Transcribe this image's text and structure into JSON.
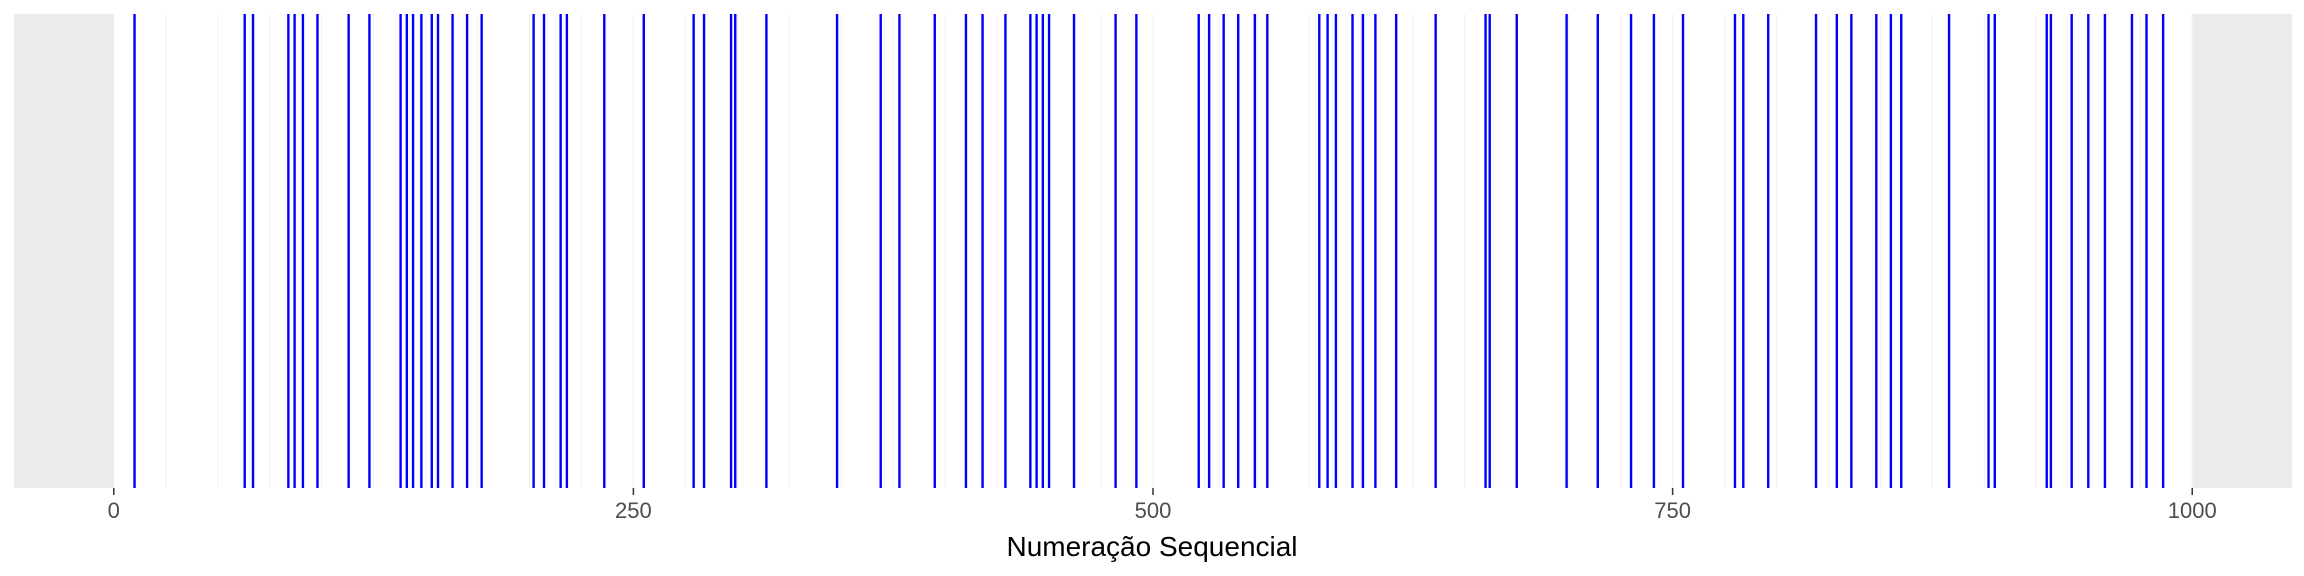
{
  "chart_data": {
    "type": "barcode",
    "title": "",
    "xlabel": "Numeração Sequencial",
    "ylabel": "",
    "xlim": [
      -48,
      1048
    ],
    "x_ticks": [
      0,
      250,
      500,
      750,
      1000
    ],
    "x_tick_labels": [
      "0",
      "250",
      "500",
      "750",
      "1000"
    ],
    "shaded_range": [
      0,
      1000
    ],
    "grid": true,
    "legend": "none",
    "colors": {
      "line": "#0000ff",
      "panel_background": "#ebebeb",
      "data_background": "#ffffff",
      "grid_minor": "#f2f2f2"
    },
    "values": [
      10,
      63,
      67,
      84,
      87,
      91,
      98,
      113,
      123,
      138,
      141,
      144,
      148,
      153,
      156,
      163,
      170,
      177,
      202,
      207,
      215,
      218,
      236,
      255,
      279,
      284,
      297,
      299,
      314,
      348,
      369,
      378,
      395,
      410,
      418,
      429,
      441,
      444,
      447,
      450,
      462,
      482,
      492,
      522,
      527,
      534,
      541,
      549,
      555,
      580,
      584,
      588,
      596,
      601,
      607,
      617,
      636,
      660,
      662,
      675,
      699,
      714,
      730,
      741,
      755,
      780,
      784,
      796,
      819,
      829,
      836,
      848,
      855,
      860,
      883,
      902,
      905,
      930,
      932,
      942,
      950,
      958,
      971,
      978,
      986
    ]
  }
}
